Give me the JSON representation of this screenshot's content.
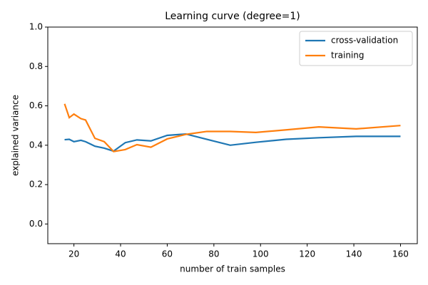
{
  "chart_data": {
    "type": "line",
    "title": "Learning curve (degree=1)",
    "x_label": "number of train samples",
    "y_label": "explained variance",
    "x": [
      16,
      18,
      20,
      23,
      25,
      29,
      33,
      37,
      42,
      47,
      53,
      60,
      68,
      77,
      87,
      98,
      111,
      125,
      141,
      160
    ],
    "series": [
      {
        "name": "cross-validation",
        "color": "#1f77b4",
        "values": [
          0.428,
          0.43,
          0.418,
          0.425,
          0.418,
          0.395,
          0.385,
          0.37,
          0.413,
          0.427,
          0.422,
          0.45,
          0.457,
          0.43,
          0.4,
          0.415,
          0.43,
          0.438,
          0.445,
          0.445
        ]
      },
      {
        "name": "training",
        "color": "#ff7f0e",
        "values": [
          0.61,
          0.54,
          0.558,
          0.535,
          0.528,
          0.435,
          0.418,
          0.368,
          0.378,
          0.403,
          0.39,
          0.432,
          0.455,
          0.47,
          0.47,
          0.465,
          0.478,
          0.493,
          0.483,
          0.5
        ]
      }
    ],
    "xlim": [
      8.8,
      167.2
    ],
    "ylim": [
      -0.1,
      1.0
    ],
    "xticks": [
      20,
      40,
      60,
      80,
      100,
      120,
      140,
      160
    ],
    "yticks": [
      {
        "value": 0.0,
        "label": "0.0"
      },
      0.2,
      0.4,
      0.6,
      0.8,
      {
        "value": 1.0,
        "label": "1.0"
      }
    ],
    "legend": "upper right"
  }
}
